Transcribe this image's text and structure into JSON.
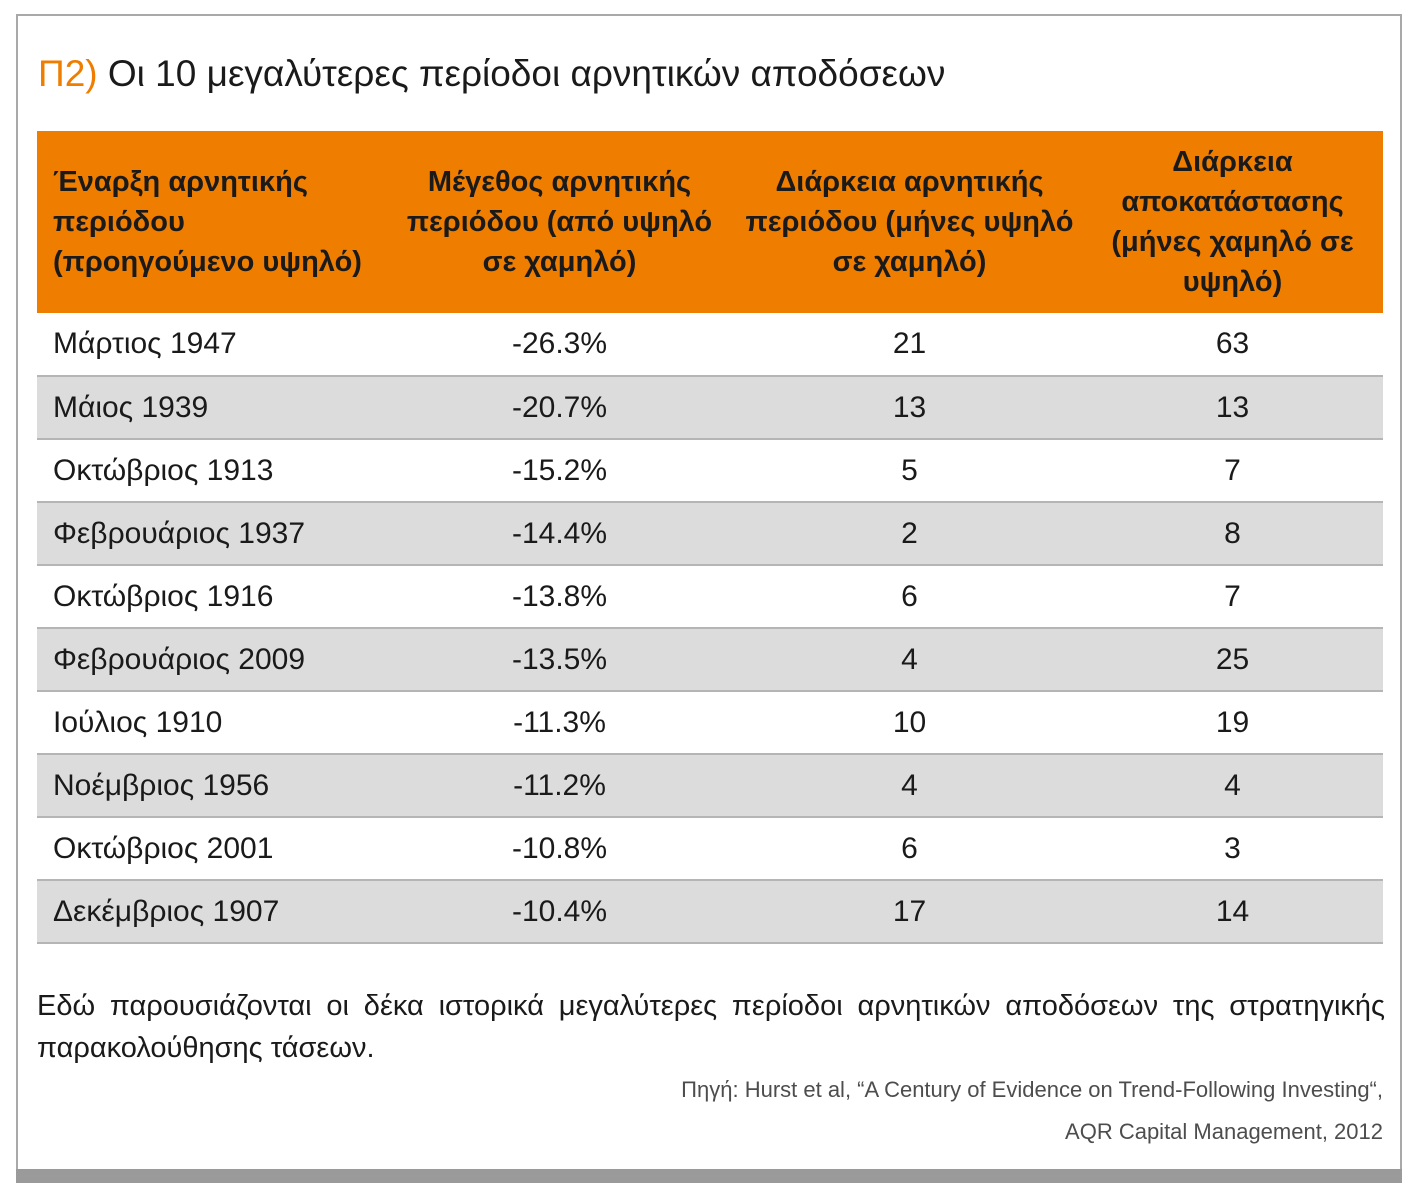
{
  "title": {
    "prefix": "Π2)",
    "text": "Οι 10 μεγαλύτερες περίοδοι αρνητικών αποδόσεων"
  },
  "table": {
    "headers": [
      "Έναρξη αρνητικής περιόδου (προηγούμενο υψηλό)",
      "Μέγεθος αρνητικής περιόδου (από υψηλό σε χαμηλό)",
      "Διάρκεια αρνητικής περιόδου (μήνες υψηλό σε χαμηλό)",
      "Διάρκεια αποκατάστασης (μήνες χαμηλό σε υψηλό)"
    ],
    "rows": [
      [
        "Μάρτιος 1947",
        "-26.3%",
        "21",
        "63"
      ],
      [
        "Μάιος 1939",
        "-20.7%",
        "13",
        "13"
      ],
      [
        "Οκτώβριος 1913",
        "-15.2%",
        "5",
        "7"
      ],
      [
        "Φεβρουάριος 1937",
        "-14.4%",
        "2",
        "8"
      ],
      [
        "Οκτώβριος 1916",
        "-13.8%",
        "6",
        "7"
      ],
      [
        "Φεβρουάριος 2009",
        "-13.5%",
        "4",
        "25"
      ],
      [
        "Ιούλιος 1910",
        "-11.3%",
        "10",
        "19"
      ],
      [
        "Νοέμβριος 1956",
        "-11.2%",
        "4",
        "4"
      ],
      [
        "Οκτώβριος 2001",
        "-10.8%",
        "6",
        "3"
      ],
      [
        "Δεκέμβριος 1907",
        "-10.4%",
        "17",
        "14"
      ]
    ]
  },
  "note": "Εδώ παρουσιάζονται οι δέκα ιστορικά μεγαλύτερες περίοδοι αρνητικών αποδόσεων της στρατηγικής παρακολούθησης τάσεων.",
  "source": {
    "line1": "Πηγή: Hurst et al, “A Century of Evidence on Trend-Following Investing“,",
    "line2": "AQR Capital Management, 2012"
  },
  "colors": {
    "accent": "#ef7d00",
    "row_shade": "#dcdcdc",
    "frame": "#a9a9a9"
  }
}
